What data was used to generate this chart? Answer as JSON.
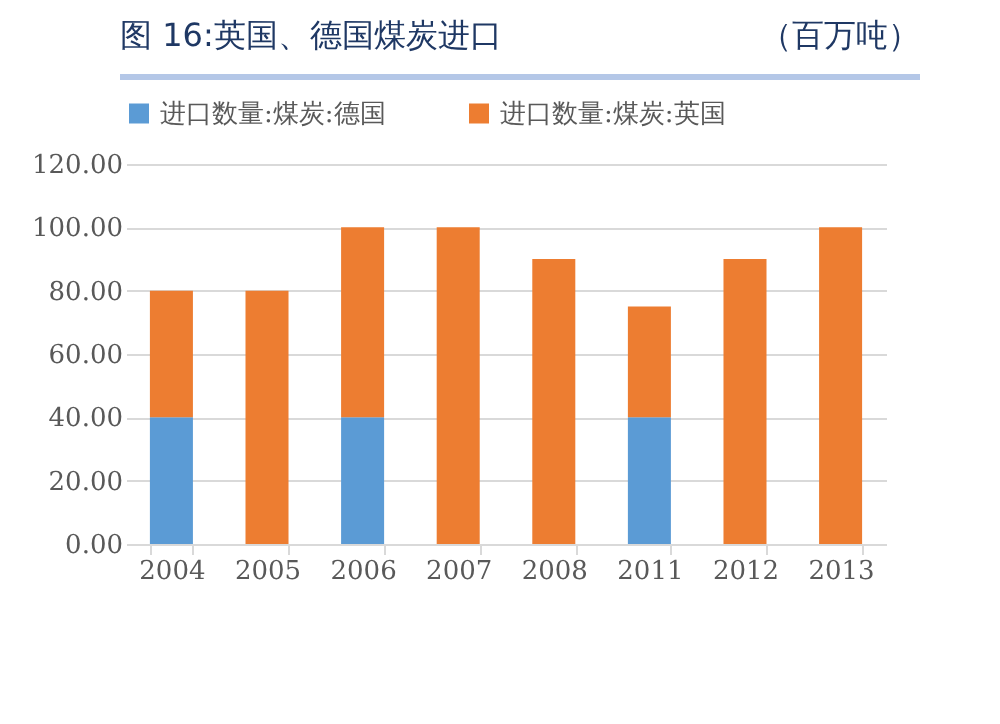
{
  "chart_data": {
    "type": "bar",
    "title": "图 16:英国、德国煤炭进口",
    "subtitle": "（百万吨）",
    "stacked": true,
    "categories": [
      "2004",
      "2005",
      "2006",
      "2007",
      "2008",
      "2011",
      "2012",
      "2013"
    ],
    "series": [
      {
        "name": "进口数量:煤炭:德国",
        "color": "#5b9bd5",
        "values": [
          40,
          null,
          40,
          null,
          null,
          40,
          null,
          null
        ]
      },
      {
        "name": "进口数量:煤炭:英国",
        "color": "#ed7d31",
        "values": [
          40,
          80,
          60,
          100,
          90,
          35,
          90,
          100
        ]
      }
    ],
    "ylim": [
      0,
      120
    ],
    "yticks": [
      {
        "value": 0,
        "label": "0.00"
      },
      {
        "value": 20,
        "label": "20.00"
      },
      {
        "value": 40,
        "label": "40.00"
      },
      {
        "value": 60,
        "label": "60.00"
      },
      {
        "value": 80,
        "label": "80.00"
      },
      {
        "value": 100,
        "label": "100.00"
      },
      {
        "value": 120,
        "label": "120.00"
      }
    ],
    "grid": "y",
    "legend": "top"
  }
}
